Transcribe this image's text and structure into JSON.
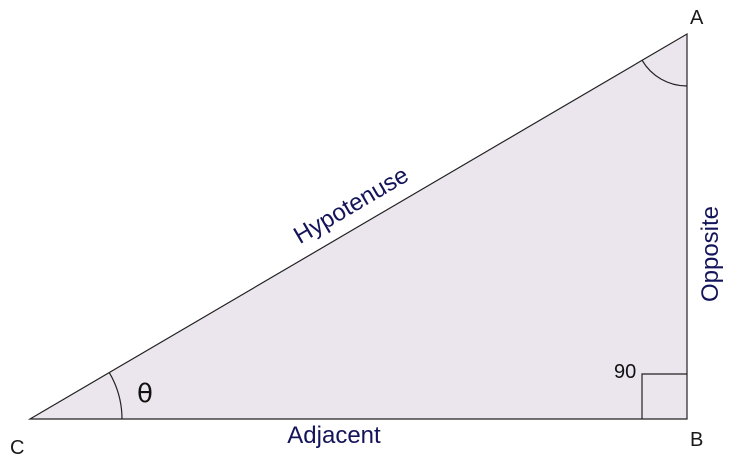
{
  "vertices": {
    "a": "A",
    "b": "B",
    "c": "C"
  },
  "sides": {
    "hypotenuse": "Hypotenuse",
    "opposite": "Opposite",
    "adjacent": "Adjacent"
  },
  "angles": {
    "theta": "θ",
    "right_angle": "90"
  },
  "colors": {
    "triangle_fill": "#ebe6ed",
    "stroke": "#222222",
    "side_label": "#14145a"
  }
}
